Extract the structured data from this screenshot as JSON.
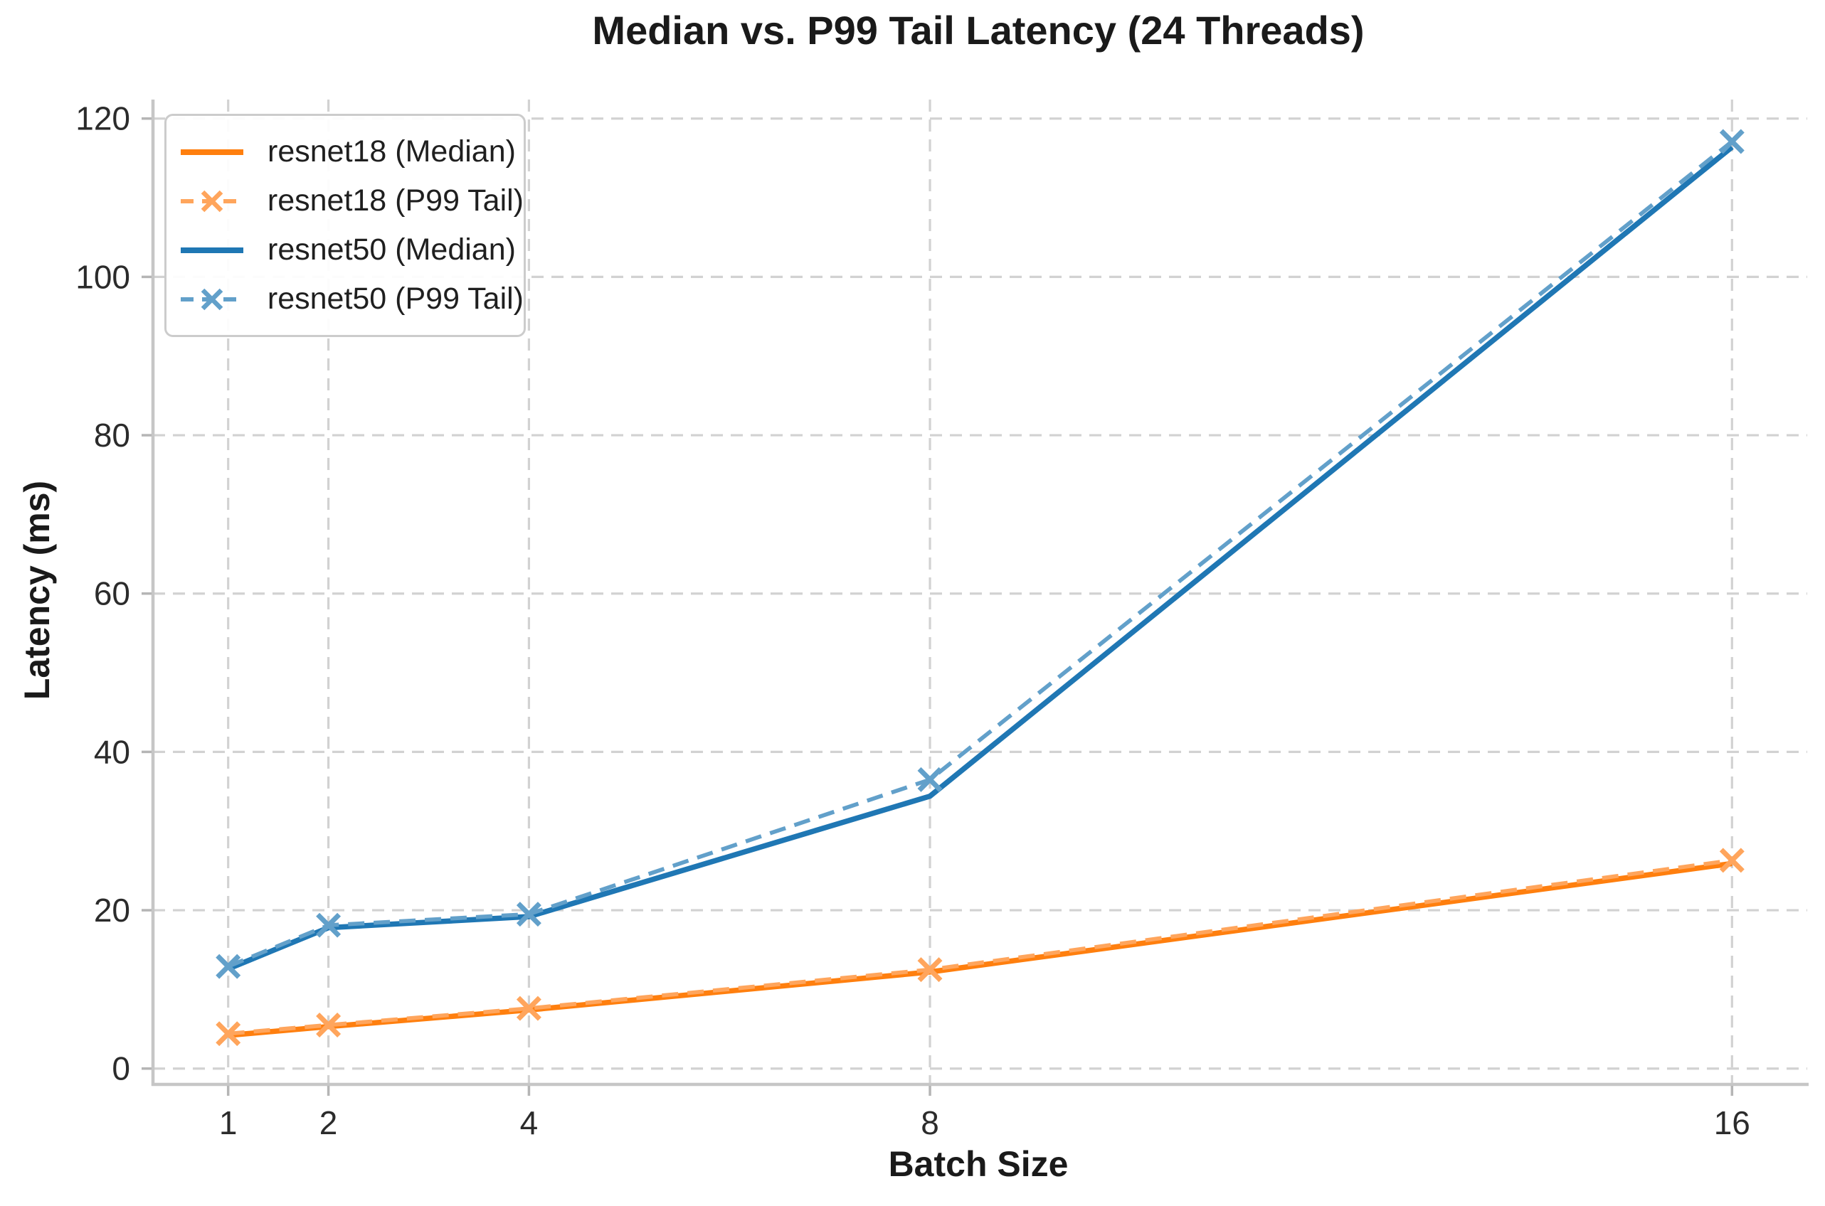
{
  "chart_data": {
    "type": "line",
    "title": "Median vs. P99 Tail Latency (24 Threads)",
    "xlabel": "Batch Size",
    "ylabel": "Latency (ms)",
    "x": [
      1,
      2,
      4,
      8,
      16
    ],
    "xticks": [
      1,
      2,
      4,
      8,
      16
    ],
    "yticks": [
      0,
      20,
      40,
      60,
      80,
      100,
      120
    ],
    "xlim": [
      0.25,
      16.75
    ],
    "ylim": [
      -2,
      122.4
    ],
    "grid": true,
    "legend_position": "upper-left",
    "colors": {
      "grid": "#d2d2d2",
      "spine": "#c6c6c6",
      "tick": "#b5b5b5",
      "text": "#1a1a1a"
    },
    "series": [
      {
        "name": "resnet18 (Median)",
        "values": [
          4.2,
          5.3,
          7.4,
          12.2,
          25.9
        ],
        "color": "#ff7f0e",
        "linestyle": "solid",
        "marker": "none"
      },
      {
        "name": "resnet18 (P99 Tail)",
        "values": [
          4.4,
          5.5,
          7.6,
          12.5,
          26.3
        ],
        "color": "#ffa55c",
        "linestyle": "dashed",
        "marker": "x"
      },
      {
        "name": "resnet50 (Median)",
        "values": [
          12.6,
          17.8,
          19.2,
          34.4,
          116.4
        ],
        "color": "#1f77b4",
        "linestyle": "solid",
        "marker": "none"
      },
      {
        "name": "resnet50 (P99 Tail)",
        "values": [
          12.9,
          18.1,
          19.5,
          36.5,
          117.1
        ],
        "color": "#62a0ca",
        "linestyle": "dashed",
        "marker": "x"
      }
    ]
  }
}
